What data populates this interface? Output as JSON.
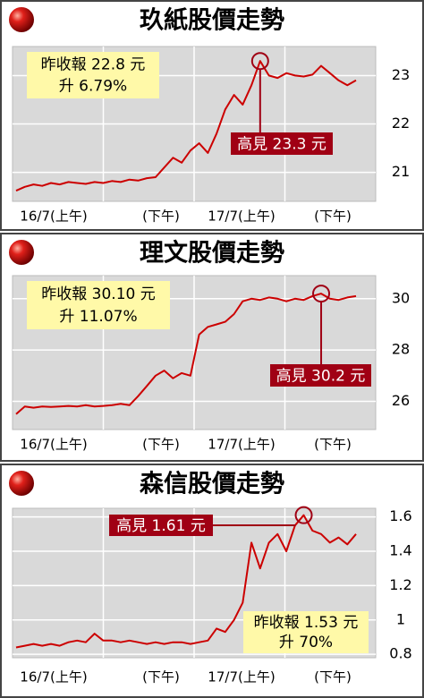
{
  "chart_data": [
    {
      "type": "line",
      "title": "玖紙股價走勢",
      "sessions": [
        "16/7(上午)",
        "(下午)",
        "17/7(上午)",
        "(下午)"
      ],
      "series": [
        {
          "color": "#cc0000",
          "values": [
            20.62,
            20.7,
            20.75,
            20.72,
            20.78,
            20.75,
            20.8,
            20.78,
            20.76,
            20.8,
            20.78,
            20.82,
            20.8,
            20.85,
            20.83,
            20.88,
            20.9,
            21.1,
            21.3,
            21.2,
            21.45,
            21.6,
            21.4,
            21.8,
            22.3,
            22.6,
            22.4,
            22.8,
            23.3,
            23.0,
            22.95,
            23.05,
            23.0,
            22.98,
            23.02,
            23.2,
            23.05,
            22.9,
            22.8,
            22.9
          ]
        }
      ],
      "ylim": [
        20.4,
        23.6
      ],
      "yticks": [
        21,
        22,
        23
      ],
      "grid": true,
      "annotations": {
        "prev_close": "昨收報 22.8 元",
        "change": "升 6.79%",
        "high": "高見 23.3 元"
      }
    },
    {
      "type": "line",
      "title": "理文股價走勢",
      "sessions": [
        "16/7(上午)",
        "(下午)",
        "17/7(上午)",
        "(下午)"
      ],
      "series": [
        {
          "color": "#cc0000",
          "values": [
            25.5,
            25.8,
            25.75,
            25.8,
            25.78,
            25.8,
            25.82,
            25.8,
            25.85,
            25.8,
            25.82,
            25.85,
            25.9,
            25.85,
            26.2,
            26.6,
            27.0,
            27.2,
            26.9,
            27.1,
            27.0,
            28.6,
            28.9,
            29.0,
            29.1,
            29.4,
            29.9,
            30.0,
            29.95,
            30.05,
            30.0,
            29.9,
            30.0,
            29.95,
            30.1,
            30.2,
            30.0,
            29.95,
            30.05,
            30.1
          ]
        }
      ],
      "ylim": [
        24.9,
        30.9
      ],
      "yticks": [
        26,
        28,
        30
      ],
      "grid": true,
      "annotations": {
        "prev_close": "昨收報 30.10 元",
        "change": "升 11.07%",
        "high": "高見 30.2 元"
      }
    },
    {
      "type": "line",
      "title": "森信股價走勢",
      "sessions": [
        "16/7(上午)",
        "(下午)",
        "17/7(上午)",
        "(下午)"
      ],
      "series": [
        {
          "color": "#cc0000",
          "values": [
            0.84,
            0.85,
            0.86,
            0.85,
            0.86,
            0.85,
            0.87,
            0.88,
            0.87,
            0.92,
            0.88,
            0.88,
            0.87,
            0.88,
            0.87,
            0.86,
            0.87,
            0.86,
            0.87,
            0.87,
            0.86,
            0.87,
            0.88,
            0.95,
            0.93,
            1.0,
            1.1,
            1.45,
            1.3,
            1.45,
            1.5,
            1.4,
            1.55,
            1.61,
            1.52,
            1.5,
            1.45,
            1.48,
            1.44,
            1.5
          ]
        }
      ],
      "ylim": [
        0.78,
        1.65
      ],
      "yticks": [
        0.8,
        1.0,
        1.2,
        1.4,
        1.6
      ],
      "grid": true,
      "annotations": {
        "high": "高見 1.61 元",
        "prev_close": "昨收報 1.53 元",
        "change": "升 70%"
      }
    }
  ]
}
